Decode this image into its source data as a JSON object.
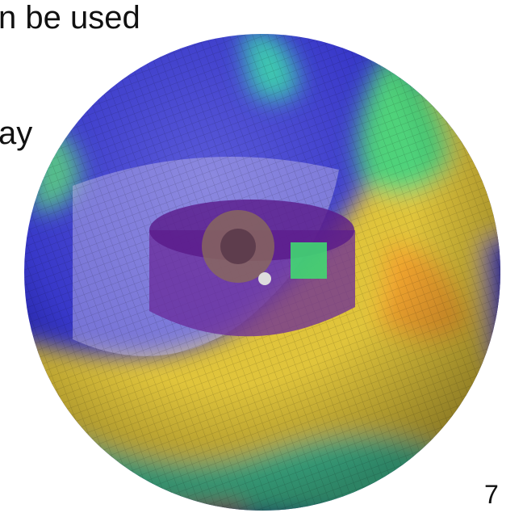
{
  "slide": {
    "text_lines": [
      "n be used",
      "ay"
    ],
    "page_number": "7"
  }
}
